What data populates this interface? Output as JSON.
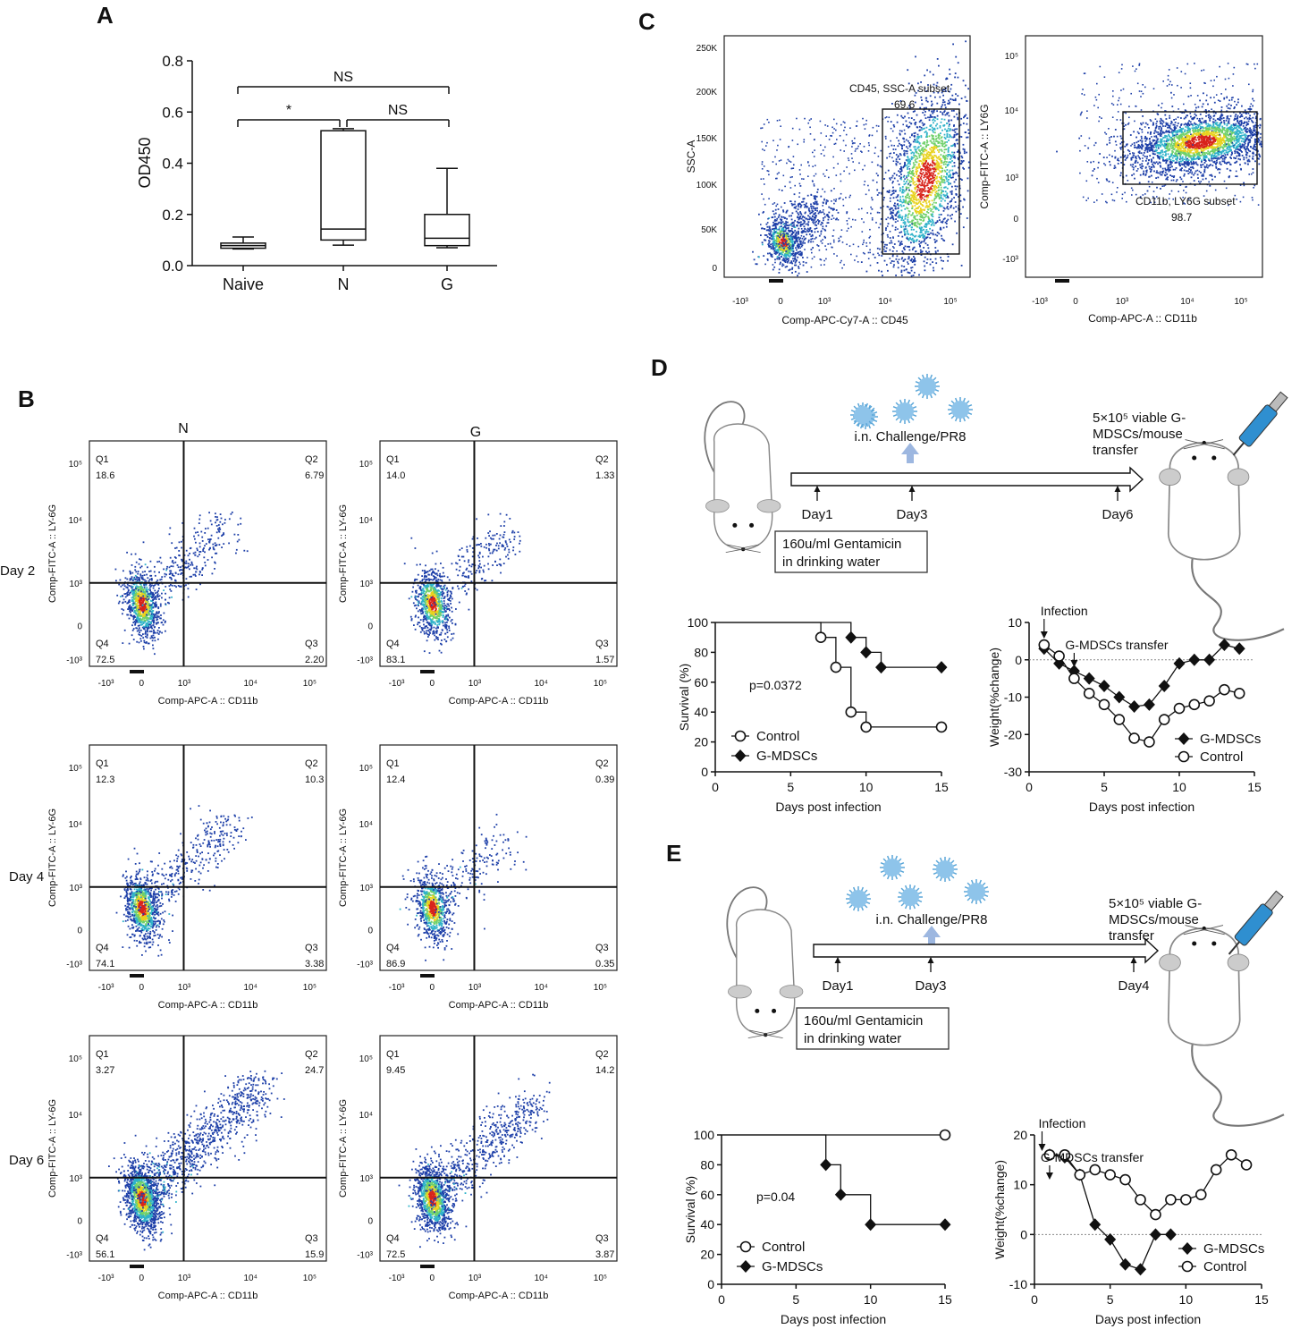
{
  "panels": {
    "A": {
      "letter": "A",
      "chart_data": {
        "type": "box",
        "ylabel": "OD450",
        "ylim": [
          0,
          0.8
        ],
        "yticks": [
          "0.0",
          "0.2",
          "0.4",
          "0.6",
          "0.8"
        ],
        "categories": [
          "Naive",
          "N",
          "G"
        ],
        "boxes": [
          {
            "name": "Naive",
            "min": 0.065,
            "q1": 0.068,
            "median": 0.078,
            "q3": 0.088,
            "max": 0.112
          },
          {
            "name": "N",
            "min": 0.08,
            "q1": 0.1,
            "median": 0.143,
            "q3": 0.527,
            "max": 0.535
          },
          {
            "name": "G",
            "min": 0.07,
            "q1": 0.078,
            "median": 0.107,
            "q3": 0.2,
            "max": 0.38
          }
        ],
        "significance": [
          {
            "from": "Naive",
            "to": "G",
            "label": "NS"
          },
          {
            "from": "Naive",
            "to": "N",
            "label": "*"
          },
          {
            "from": "N",
            "to": "G",
            "label": "NS"
          }
        ]
      }
    },
    "B": {
      "letter": "B",
      "col_titles": [
        "N",
        "G"
      ],
      "row_labels": [
        "Day 2",
        "Day 4",
        "Day 6"
      ],
      "xlabel": "Comp-APC-A :: CD11b",
      "ylabel": "Comp-FITC-A :: LY-6G",
      "xticks": [
        "-10³",
        "0",
        "10³",
        "10⁴",
        "10⁵"
      ],
      "yticks": [
        "10⁵",
        "10⁴",
        "10³",
        "0",
        "-10³"
      ],
      "quadrant_names": [
        "Q1",
        "Q2",
        "Q3",
        "Q4"
      ],
      "plots": [
        {
          "group": "N",
          "day": "Day 2",
          "q1": "18.6",
          "q2": "6.79",
          "q3": "2.20",
          "q4": "72.5",
          "density": 0.9,
          "spread": 0.35
        },
        {
          "group": "G",
          "day": "Day 2",
          "q1": "14.0",
          "q2": "1.33",
          "q3": "1.57",
          "q4": "83.1",
          "density": 0.75,
          "spread": 0.2
        },
        {
          "group": "N",
          "day": "Day 4",
          "q1": "12.3",
          "q2": "10.3",
          "q3": "3.38",
          "q4": "74.1",
          "density": 0.9,
          "spread": 0.45
        },
        {
          "group": "G",
          "day": "Day 4",
          "q1": "12.4",
          "q2": "0.39",
          "q3": "0.35",
          "q4": "86.9",
          "density": 0.7,
          "spread": 0.12
        },
        {
          "group": "N",
          "day": "Day 6",
          "q1": "3.27",
          "q2": "24.7",
          "q3": "15.9",
          "q4": "56.1",
          "density": 1.6,
          "spread": 0.9
        },
        {
          "group": "G",
          "day": "Day 6",
          "q1": "9.45",
          "q2": "14.2",
          "q3": "3.87",
          "q4": "72.5",
          "density": 1.2,
          "spread": 0.65
        }
      ]
    },
    "C": {
      "letter": "C",
      "left": {
        "xlabel": "Comp-APC-Cy7-A :: CD45",
        "ylabel": "SSC-A",
        "yticks": [
          "250K",
          "200K",
          "150K",
          "100K",
          "50K",
          "0"
        ],
        "xticks": [
          "-10³",
          "0",
          "10³",
          "10⁴",
          "10⁵"
        ],
        "gate_label": "CD45, SSC-A subset",
        "gate_value": "69.6"
      },
      "right": {
        "xlabel": "Comp-APC-A :: CD11b",
        "ylabel": "Comp-FITC-A :: LY6G",
        "yticks": [
          "10⁵",
          "10⁴",
          "10³",
          "0",
          "-10³"
        ],
        "xticks": [
          "-10³",
          "0",
          "10³",
          "10⁴",
          "10⁵"
        ],
        "gate_label": "CD11b, LY6G subset",
        "gate_value": "98.7"
      }
    },
    "D": {
      "letter": "D",
      "schematic": {
        "challenge": "i.n. Challenge/PR8",
        "transfer_lines": [
          "5×10⁵ viable G-",
          "MDSCs/mouse",
          "transfer"
        ],
        "days": [
          "Day1",
          "Day3",
          "Day6"
        ],
        "water_lines": [
          "160u/ml Gentamicin",
          "in drinking water"
        ]
      },
      "survival": {
        "type": "line",
        "ylabel": "Survival (%)",
        "xlabel": "Days post infection",
        "pvalue": "p=0.0372",
        "xticks": [
          "0",
          "5",
          "10",
          "15"
        ],
        "yticks": [
          "0",
          "20",
          "40",
          "60",
          "80",
          "100"
        ],
        "xlim": [
          0,
          15
        ],
        "ylim": [
          0,
          100
        ],
        "series": [
          {
            "name": "Control",
            "marker": "circle",
            "steps": [
              [
                0,
                100
              ],
              [
                7,
                100
              ],
              [
                7,
                90
              ],
              [
                8,
                90
              ],
              [
                8,
                70
              ],
              [
                9,
                70
              ],
              [
                9,
                40
              ],
              [
                10,
                40
              ],
              [
                10,
                30
              ],
              [
                15,
                30
              ]
            ],
            "points": [
              [
                7,
                90
              ],
              [
                8,
                70
              ],
              [
                9,
                40
              ],
              [
                10,
                30
              ],
              [
                15,
                30
              ]
            ]
          },
          {
            "name": "G-MDSCs",
            "marker": "diamond",
            "steps": [
              [
                0,
                100
              ],
              [
                9,
                100
              ],
              [
                9,
                90
              ],
              [
                10,
                90
              ],
              [
                10,
                80
              ],
              [
                11,
                80
              ],
              [
                11,
                70
              ],
              [
                15,
                70
              ]
            ],
            "points": [
              [
                9,
                90
              ],
              [
                10,
                80
              ],
              [
                11,
                70
              ],
              [
                15,
                70
              ]
            ]
          }
        ]
      },
      "weight": {
        "type": "line",
        "ylabel": "Weight(%change)",
        "xlabel": "Days post infection",
        "xticks": [
          "0",
          "5",
          "10",
          "15"
        ],
        "yticks": [
          "10",
          "0",
          "-10",
          "-20",
          "-30"
        ],
        "xlim": [
          0,
          15
        ],
        "ylim": [
          -30,
          10
        ],
        "annot_infection": "Infection",
        "annot_transfer": "G-MDSCs transfer",
        "infection_day": 1,
        "transfer_day": 3,
        "series": [
          {
            "name": "G-MDSCs",
            "marker": "diamond",
            "x": [
              1,
              2,
              3,
              4,
              5,
              6,
              7,
              8,
              9,
              10,
              11,
              12,
              13,
              14
            ],
            "y": [
              3,
              -1,
              -3,
              -5,
              -7,
              -10,
              -12.5,
              -12,
              -7,
              -1,
              0,
              0,
              4,
              3
            ]
          },
          {
            "name": "Control",
            "marker": "circle",
            "x": [
              1,
              2,
              3,
              4,
              5,
              6,
              7,
              8,
              9,
              10,
              11,
              12,
              13,
              14
            ],
            "y": [
              4,
              1,
              -5,
              -9,
              -12,
              -16,
              -21,
              -22,
              -16,
              -13,
              -12,
              -11,
              -8,
              -9
            ]
          }
        ]
      }
    },
    "E": {
      "letter": "E",
      "schematic": {
        "challenge": "i.n. Challenge/PR8",
        "transfer_lines": [
          "5×10⁵ viable G-",
          "MDSCs/mouse",
          "transfer"
        ],
        "days": [
          "Day1",
          "Day3",
          "Day4"
        ],
        "water_lines": [
          "160u/ml Gentamicin",
          "in drinking water"
        ]
      },
      "survival": {
        "type": "line",
        "ylabel": "Survival (%)",
        "xlabel": "Days post infection",
        "pvalue": "p=0.04",
        "xticks": [
          "0",
          "5",
          "10",
          "15"
        ],
        "yticks": [
          "0",
          "20",
          "40",
          "60",
          "80",
          "100"
        ],
        "xlim": [
          0,
          15
        ],
        "ylim": [
          0,
          100
        ],
        "series": [
          {
            "name": "Control",
            "marker": "circle",
            "steps": [
              [
                0,
                100
              ],
              [
                15,
                100
              ]
            ],
            "points": [
              [
                15,
                100
              ]
            ]
          },
          {
            "name": "G-MDSCs",
            "marker": "diamond",
            "steps": [
              [
                0,
                100
              ],
              [
                7,
                100
              ],
              [
                7,
                80
              ],
              [
                8,
                80
              ],
              [
                8,
                60
              ],
              [
                10,
                60
              ],
              [
                10,
                40
              ],
              [
                15,
                40
              ]
            ],
            "points": [
              [
                7,
                80
              ],
              [
                8,
                60
              ],
              [
                10,
                40
              ],
              [
                15,
                40
              ]
            ]
          }
        ]
      },
      "weight": {
        "type": "line",
        "ylabel": "Weight(%change)",
        "xlabel": "Days post infection",
        "xticks": [
          "0",
          "5",
          "10",
          "15"
        ],
        "yticks": [
          "20",
          "10",
          "0",
          "-10"
        ],
        "xlim": [
          0,
          15
        ],
        "ylim": [
          -10,
          20
        ],
        "annot_infection": "Infection",
        "annot_transfer": "G-MDSCs transfer",
        "infection_day": 0.5,
        "transfer_day": 1,
        "series": [
          {
            "name": "G-MDSCs",
            "marker": "diamond",
            "x": [
              1,
              2,
              3,
              4,
              5,
              6,
              7,
              8,
              9
            ],
            "y": [
              16,
              15.5,
              12,
              2,
              -1,
              -6,
              -7,
              0,
              0
            ]
          },
          {
            "name": "Control",
            "marker": "circle",
            "x": [
              1,
              2,
              3,
              4,
              5,
              6,
              7,
              8,
              9,
              10,
              11,
              12,
              13,
              14
            ],
            "y": [
              16,
              16,
              12,
              13,
              12,
              11,
              7,
              4,
              7,
              7,
              8,
              13,
              16,
              14
            ]
          }
        ]
      }
    }
  },
  "colors": {
    "axis": "#111111",
    "arrow_blue": "#9db7e0",
    "virus": "#5aa6d8",
    "flow_low": "#1d3fa8",
    "flow_mid": "#2fb2c9",
    "flow_high": "#e8d21e",
    "flow_peak": "#d8231b"
  }
}
